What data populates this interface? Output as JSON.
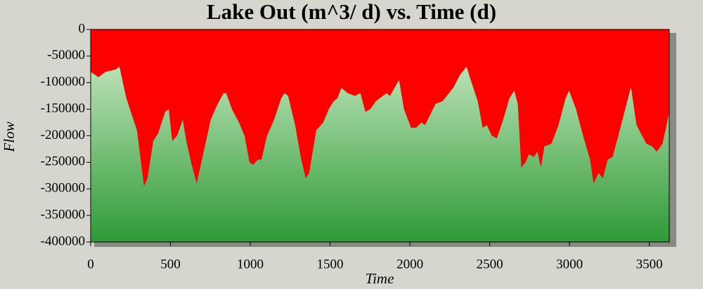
{
  "chart_data": {
    "type": "area",
    "title": "Lake Out (m^3/ d) vs. Time (d)",
    "x_label": "Time",
    "y_label": "Flow",
    "x": [
      0,
      26,
      48,
      92,
      158,
      180,
      224,
      290,
      334,
      356,
      392,
      423,
      467,
      489,
      511,
      541,
      577,
      599,
      629,
      664,
      708,
      752,
      796,
      832,
      849,
      885,
      929,
      964,
      995,
      1017,
      1048,
      1070,
      1105,
      1149,
      1193,
      1215,
      1237,
      1281,
      1316,
      1347,
      1369,
      1413,
      1457,
      1492,
      1523,
      1545,
      1571,
      1611,
      1655,
      1690,
      1721,
      1752,
      1787,
      1853,
      1875,
      1932,
      1963,
      2007,
      2038,
      2073,
      2095,
      2161,
      2205,
      2271,
      2315,
      2355,
      2381,
      2425,
      2456,
      2482,
      2513,
      2544,
      2579,
      2623,
      2654,
      2676,
      2698,
      2724,
      2746,
      2777,
      2799,
      2821,
      2843,
      2887,
      2931,
      2975,
      2997,
      3041,
      3085,
      3129,
      3151,
      3182,
      3209,
      3239,
      3270,
      3306,
      3349,
      3385,
      3420,
      3446,
      3482,
      3517,
      3547,
      3583,
      3605,
      3625
    ],
    "series": [
      {
        "name": "Lake Out",
        "color": "#ff0000",
        "values": [
          -80000,
          -85000,
          -90000,
          -80000,
          -75000,
          -70000,
          -130000,
          -190000,
          -295000,
          -280000,
          -210000,
          -195000,
          -155000,
          -150000,
          -210000,
          -200000,
          -170000,
          -210000,
          -250000,
          -290000,
          -230000,
          -170000,
          -140000,
          -120000,
          -120000,
          -150000,
          -175000,
          -200000,
          -250000,
          -255000,
          -245000,
          -245000,
          -200000,
          -170000,
          -130000,
          -120000,
          -125000,
          -180000,
          -240000,
          -280000,
          -270000,
          -190000,
          -175000,
          -150000,
          -135000,
          -130000,
          -110000,
          -120000,
          -125000,
          -120000,
          -155000,
          -150000,
          -135000,
          -120000,
          -125000,
          -95000,
          -150000,
          -185000,
          -185000,
          -175000,
          -180000,
          -140000,
          -135000,
          -110000,
          -85000,
          -70000,
          -95000,
          -135000,
          -185000,
          -180000,
          -200000,
          -205000,
          -175000,
          -130000,
          -115000,
          -140000,
          -260000,
          -250000,
          -235000,
          -240000,
          -230000,
          -260000,
          -220000,
          -215000,
          -180000,
          -130000,
          -115000,
          -150000,
          -200000,
          -245000,
          -290000,
          -270000,
          -280000,
          -245000,
          -240000,
          -200000,
          -150000,
          -108000,
          -180000,
          -195000,
          -215000,
          -220000,
          -230000,
          -215000,
          -185000,
          -155000
        ]
      }
    ],
    "xlim": [
      0,
      3625
    ],
    "xticks": [
      0,
      500,
      1000,
      1500,
      2000,
      2500,
      3000,
      3500
    ],
    "ylim": [
      -400000,
      0
    ],
    "yticks": [
      0,
      -50000,
      -100000,
      -150000,
      -200000,
      -250000,
      -300000,
      -350000,
      -400000
    ]
  }
}
